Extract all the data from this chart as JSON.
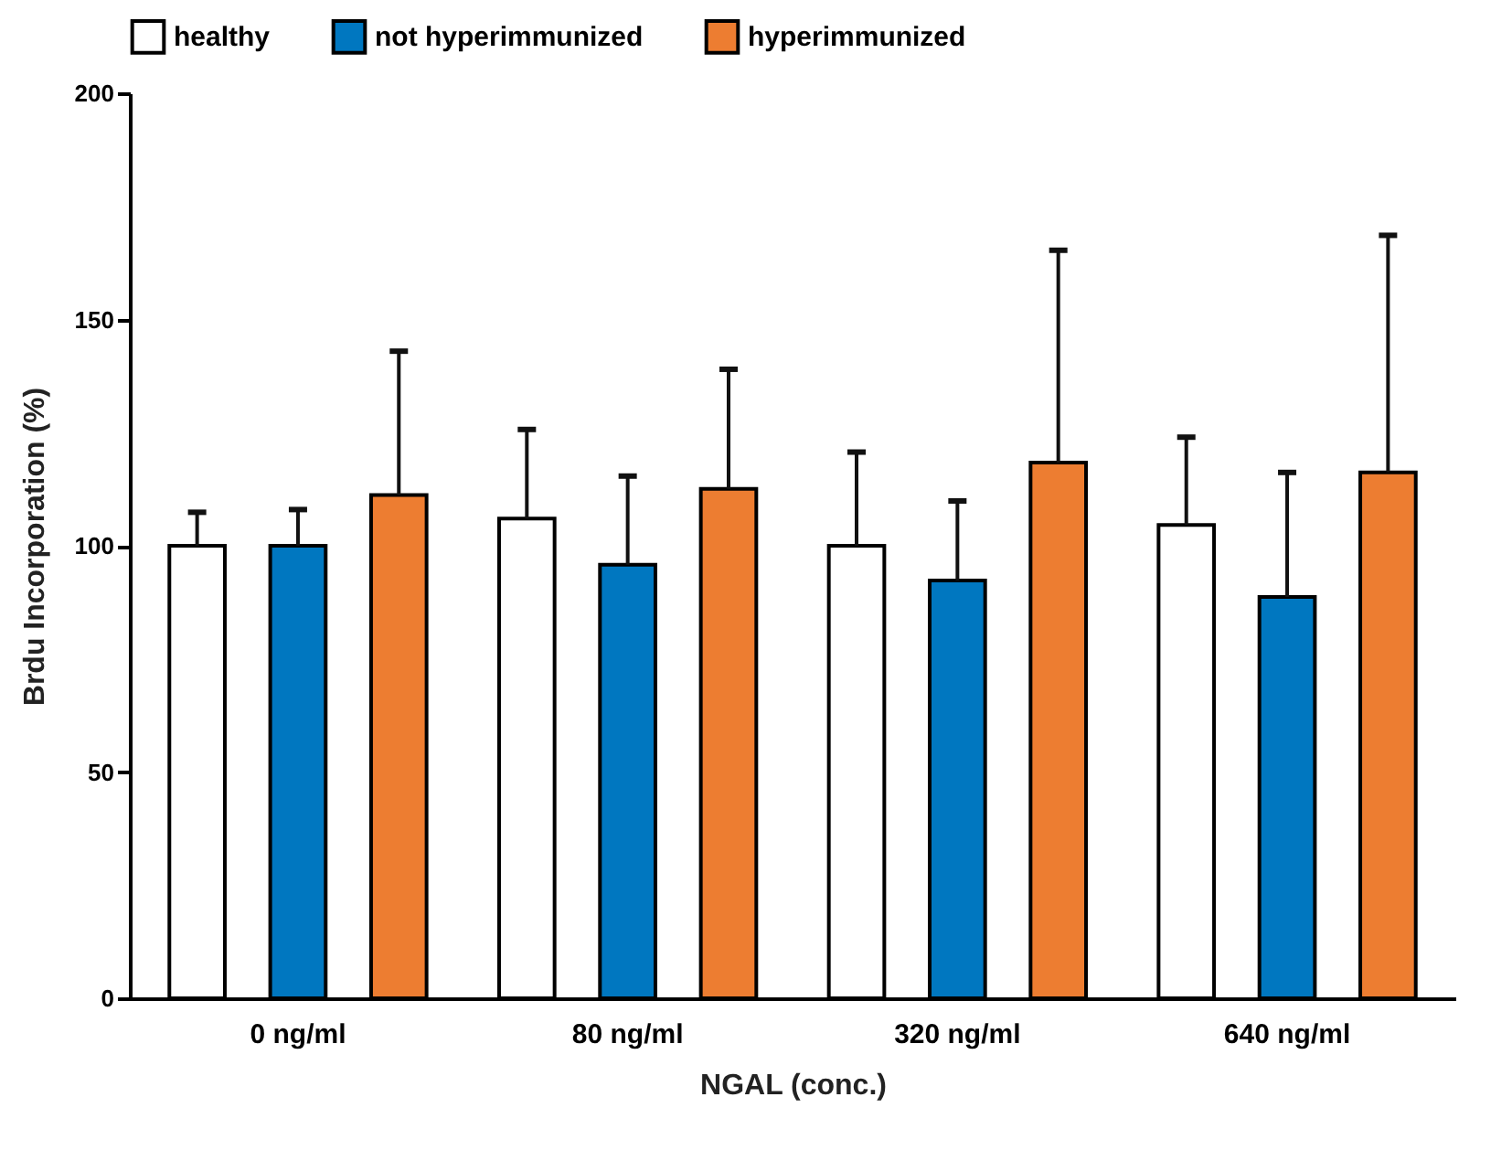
{
  "chart_data": {
    "type": "bar",
    "xlabel": "NGAL (conc.)",
    "ylabel": "Brdu Incorporation (%)",
    "categories": [
      "0 ng/ml",
      "80 ng/ml",
      "320 ng/ml",
      "640 ng/ml"
    ],
    "series": [
      {
        "name": "healthy",
        "color": "#ffffff",
        "values": [
          100,
          106,
          100,
          104.6
        ],
        "errors": [
          [
            100,
            107.4
          ],
          [
            106,
            125.7
          ],
          [
            100,
            120.7
          ],
          [
            104.6,
            124
          ]
        ]
      },
      {
        "name": "not hyperimmunized",
        "color": "#0077c0",
        "values": [
          100,
          95.8,
          92.3,
          88.7
        ],
        "errors": [
          [
            100,
            108
          ],
          [
            95.8,
            115.4
          ],
          [
            92.3,
            109.9
          ],
          [
            88.7,
            116.2
          ]
        ]
      },
      {
        "name": "hyperimmunized",
        "color": "#ed7d31",
        "values": [
          111.2,
          112.6,
          118.4,
          116.2
        ],
        "errors": [
          [
            111.2,
            143
          ],
          [
            112.6,
            139
          ],
          [
            118.4,
            165.3
          ],
          [
            116.2,
            168.6
          ]
        ]
      }
    ],
    "ylim": [
      0,
      200
    ],
    "yticks": [
      0,
      50,
      100,
      150,
      200
    ],
    "grid": false,
    "legend": "top"
  }
}
